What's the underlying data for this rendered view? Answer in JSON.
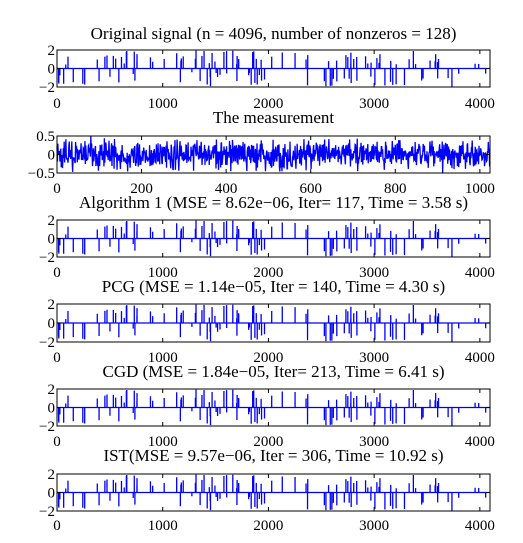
{
  "chart_data": [
    {
      "type": "line",
      "title": "Original signal (n = 4096, number of nonzeros = 128)",
      "xlim": [
        0,
        4096
      ],
      "ylim": [
        -2,
        2
      ],
      "xticks": [
        "0",
        "1000",
        "2000",
        "3000",
        "4000"
      ],
      "yticks": [
        "2",
        "0",
        "−2"
      ],
      "color": "#0000ff",
      "signal": "sparse spikes"
    },
    {
      "type": "line",
      "title": "The measurement",
      "xlim": [
        0,
        1024
      ],
      "ylim": [
        -0.5,
        0.5
      ],
      "xticks": [
        "0",
        "200",
        "400",
        "600",
        "800",
        "1000"
      ],
      "yticks": [
        "0.5",
        "0",
        "−0.5"
      ],
      "color": "#0000ff",
      "signal": "dense noise"
    },
    {
      "type": "line",
      "title": "Algorithm 1 (MSE = 8.62e−06, Iter= 117, Time = 3.58 s)",
      "xlim": [
        0,
        4096
      ],
      "ylim": [
        -2,
        2
      ],
      "xticks": [
        "0",
        "1000",
        "2000",
        "3000",
        "4000"
      ],
      "yticks": [
        "2",
        "0",
        "−2"
      ],
      "color": "#0000ff",
      "signal": "sparse spikes"
    },
    {
      "type": "line",
      "title": "PCG (MSE = 1.14e−05,  Iter = 140, Time = 4.30 s)",
      "xlim": [
        0,
        4096
      ],
      "ylim": [
        -2,
        2
      ],
      "xticks": [
        "0",
        "1000",
        "2000",
        "3000",
        "4000"
      ],
      "yticks": [
        "2",
        "0",
        "−2"
      ],
      "color": "#0000ff",
      "signal": "sparse spikes"
    },
    {
      "type": "line",
      "title": "CGD (MSE = 1.84e−05,  Iter= 213, Time = 6.41 s)",
      "xlim": [
        0,
        4096
      ],
      "ylim": [
        -2,
        2
      ],
      "xticks": [
        "0",
        "1000",
        "2000",
        "3000",
        "4000"
      ],
      "yticks": [
        "2",
        "0",
        "−2"
      ],
      "color": "#0000ff",
      "signal": "sparse spikes"
    },
    {
      "type": "line",
      "title": "IST(MSE = 9.57e−06,  Iter = 306, Time = 10.92 s)",
      "xlim": [
        0,
        4096
      ],
      "ylim": [
        -2,
        2
      ],
      "xticks": [
        "0",
        "1000",
        "2000",
        "3000",
        "4000"
      ],
      "yticks": [
        "2",
        "0",
        "−2"
      ],
      "color": "#0000ff",
      "signal": "sparse spikes"
    }
  ]
}
